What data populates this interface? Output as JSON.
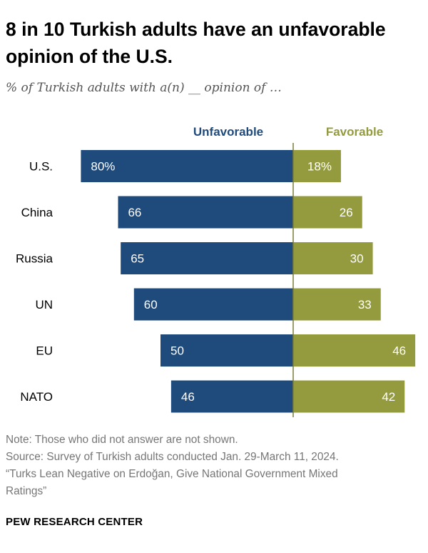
{
  "header": {
    "title": "8 in 10 Turkish adults have an unfavorable opinion of the U.S.",
    "subtitle": "% of Turkish adults with a(n) __ opinion of …"
  },
  "chart_data": {
    "type": "bar",
    "orientation": "horizontal-diverging",
    "categories": [
      "U.S.",
      "China",
      "Russia",
      "UN",
      "EU",
      "NATO"
    ],
    "series": [
      {
        "name": "Unfavorable",
        "values": [
          80,
          66,
          65,
          60,
          50,
          46
        ],
        "labels": [
          "80%",
          "66",
          "65",
          "60",
          "50",
          "46"
        ],
        "color": "#1f4a7c"
      },
      {
        "name": "Favorable",
        "values": [
          18,
          26,
          30,
          33,
          46,
          42
        ],
        "labels": [
          "18%",
          "26",
          "30",
          "33",
          "46",
          "42"
        ],
        "color": "#949a3e"
      }
    ],
    "axis_line_color": "#7a7d3a"
  },
  "notes": {
    "note": "Note: Those who did not answer are not shown.",
    "source": "Source: Survey of Turkish adults conducted Jan. 29-March 11, 2024.",
    "report_line1": "“Turks Lean Negative on Erdoğan, Give National Government Mixed",
    "report_line2": "Ratings”"
  },
  "footer": {
    "brand": "PEW RESEARCH CENTER"
  }
}
